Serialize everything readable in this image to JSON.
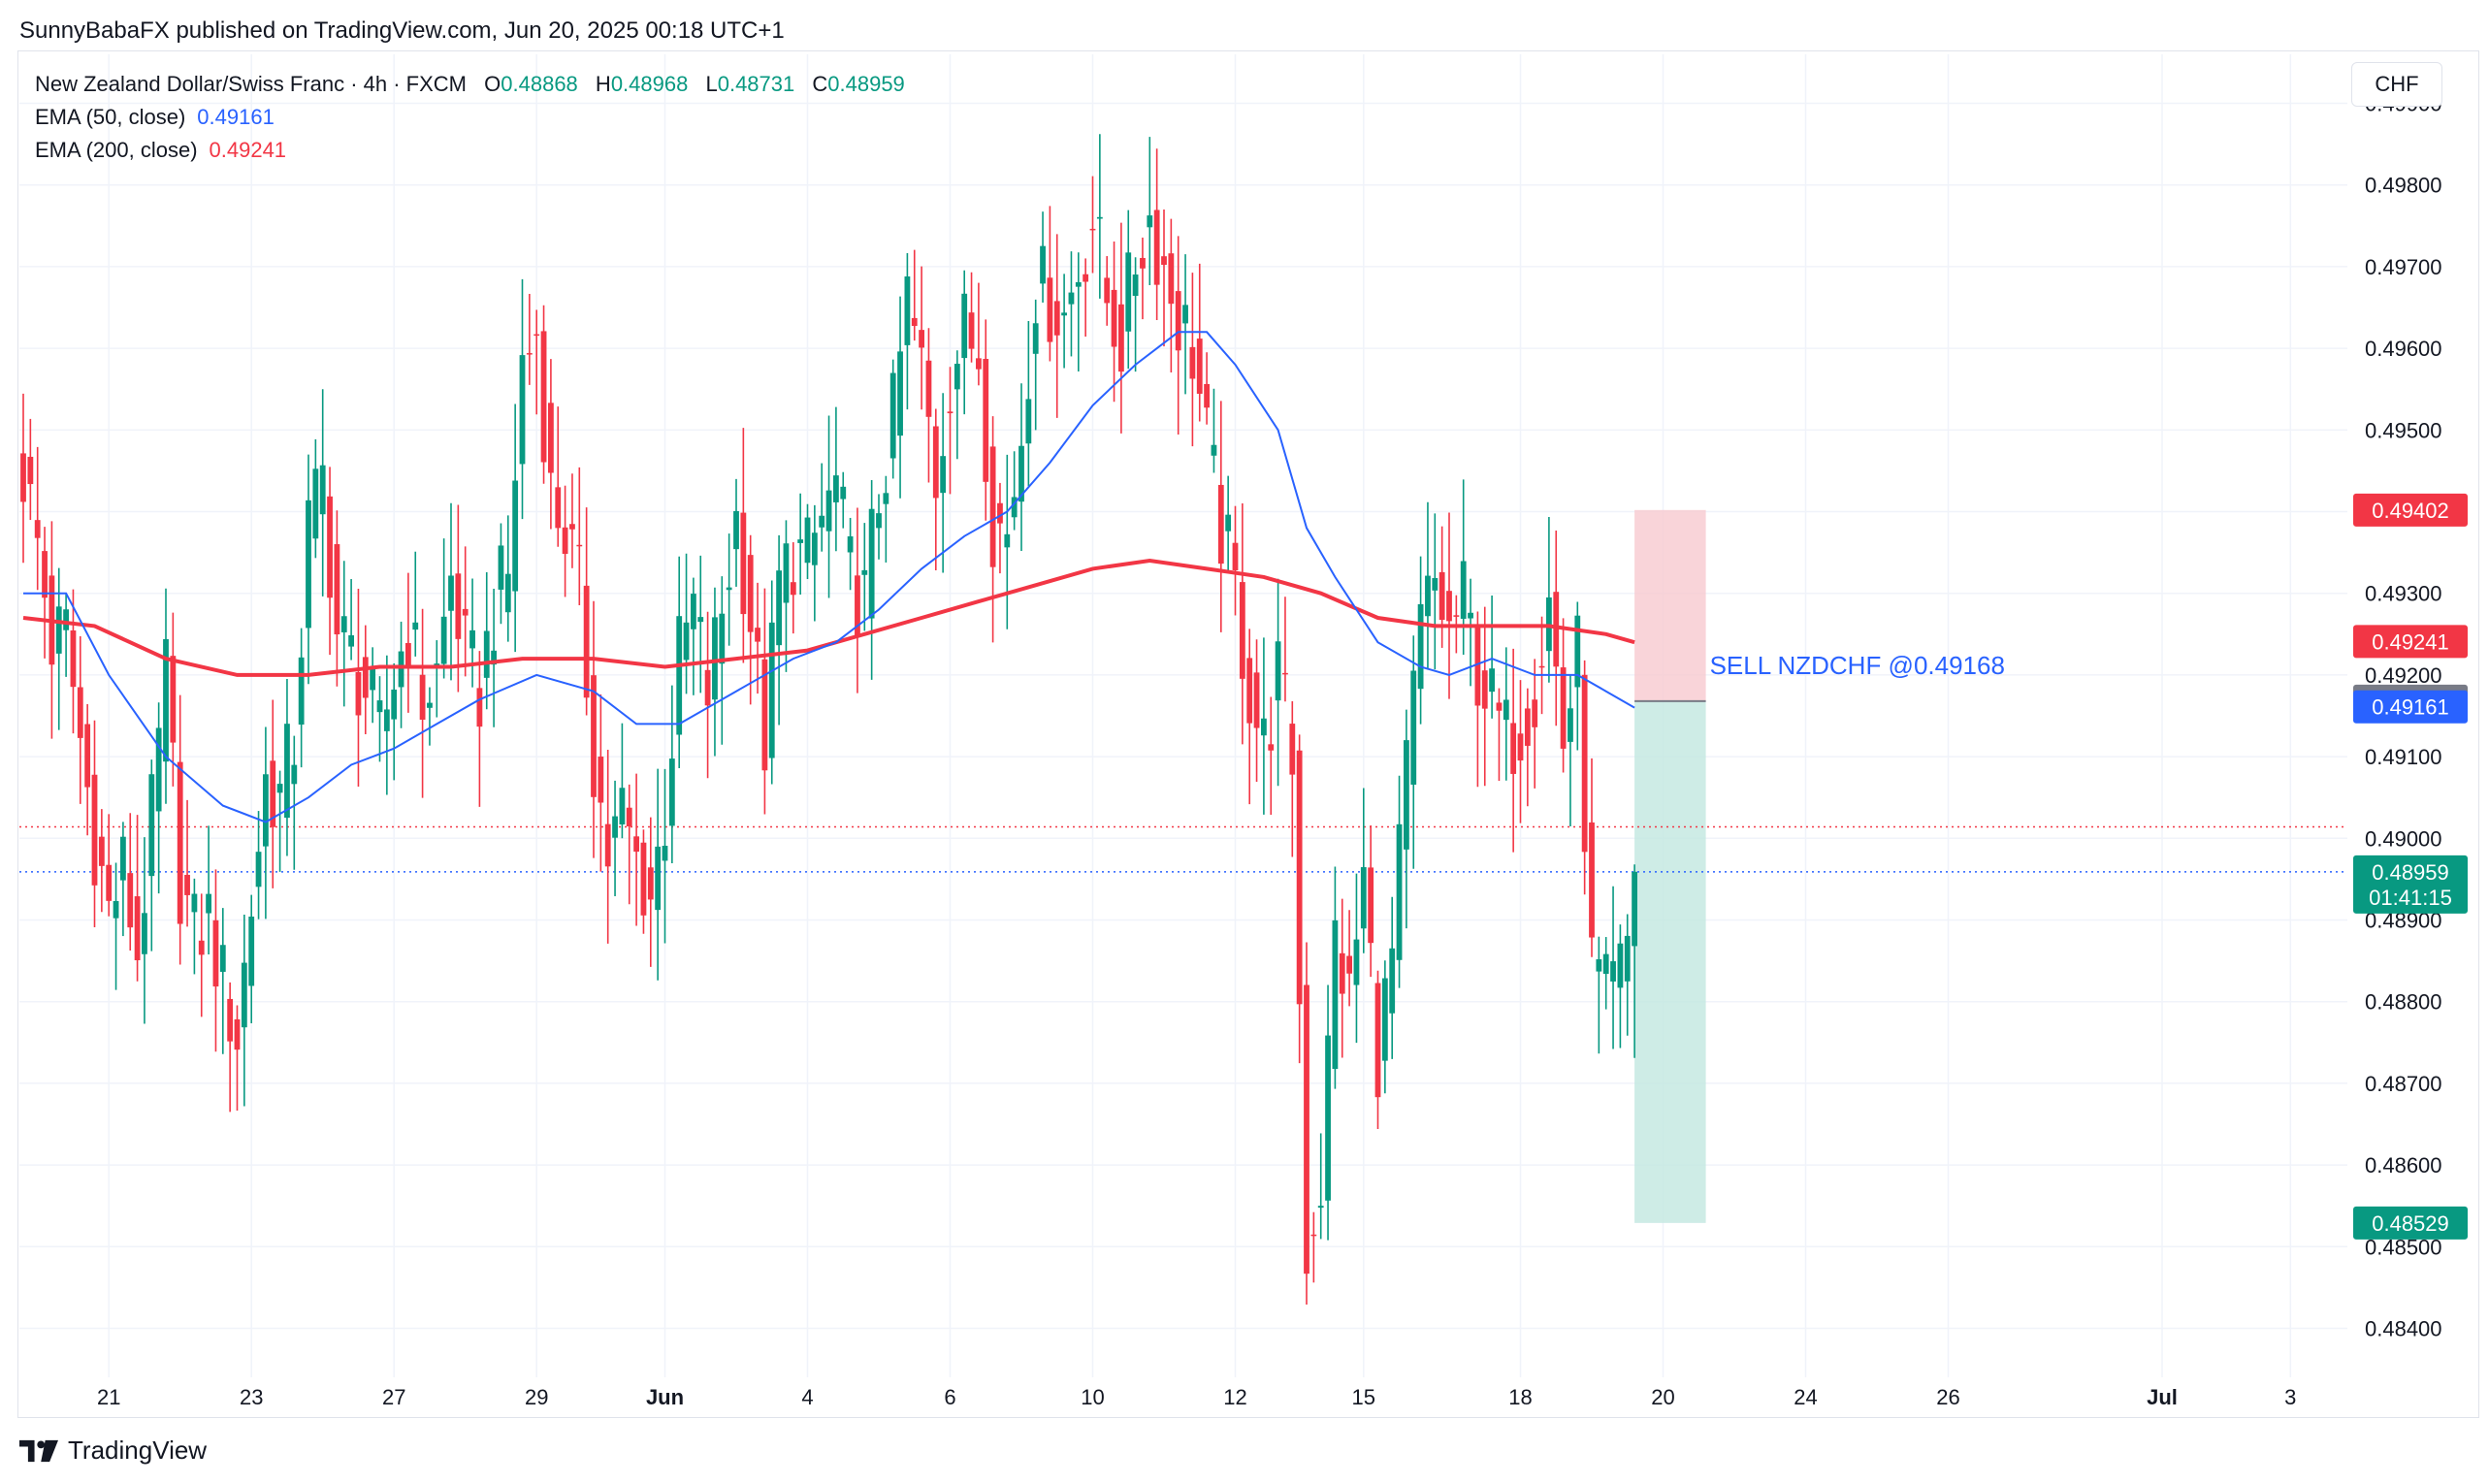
{
  "header": {
    "text": "SunnyBabaFX published on TradingView.com, Jun 20, 2025 00:18 UTC+1"
  },
  "legend": {
    "symbol": "New Zealand Dollar/Swiss Franc · 4h · FXCM",
    "ohlc": [
      {
        "k": "O",
        "v": "0.48868"
      },
      {
        "k": "H",
        "v": "0.48968"
      },
      {
        "k": "L",
        "v": "0.48731"
      },
      {
        "k": "C",
        "v": "0.48959"
      }
    ],
    "ema50": {
      "label": "EMA (50, close)",
      "value": "0.49161"
    },
    "ema200": {
      "label": "EMA (200, close)",
      "value": "0.49241"
    }
  },
  "currency": "CHF",
  "footer": {
    "brand": "TradingView"
  },
  "colors": {
    "up": "#089981",
    "down": "#f23645",
    "ema50": "#2962ff",
    "ema200": "#f23645",
    "stop_zone": "#f8c9cf",
    "target_zone": "#c2e7e0"
  },
  "chart_data": {
    "type": "candlestick",
    "title": "New Zealand Dollar/Swiss Franc · 4h · FXCM",
    "ylim": [
      0.4834,
      0.4996
    ],
    "y_ticks": [
      "0.48400",
      "0.48500",
      "0.48600",
      "0.48700",
      "0.48800",
      "0.48900",
      "0.49000",
      "0.49100",
      "0.49200",
      "0.49300",
      "0.49400",
      "0.49500",
      "0.49600",
      "0.49700",
      "0.49800",
      "0.49900"
    ],
    "x_ticks": [
      {
        "i": 12,
        "label": "21"
      },
      {
        "i": 32,
        "label": "23"
      },
      {
        "i": 52,
        "label": "27"
      },
      {
        "i": 72,
        "label": "29"
      },
      {
        "i": 90,
        "label": "Jun"
      },
      {
        "i": 110,
        "label": "4"
      },
      {
        "i": 130,
        "label": "6"
      },
      {
        "i": 150,
        "label": "10"
      },
      {
        "i": 170,
        "label": "12"
      },
      {
        "i": 188,
        "label": "15"
      },
      {
        "i": 210,
        "label": "18"
      },
      {
        "i": 230,
        "label": "20"
      },
      {
        "i": 250,
        "label": "24"
      },
      {
        "i": 270,
        "label": "26"
      },
      {
        "i": 300,
        "label": "Jul"
      },
      {
        "i": 318,
        "label": "3"
      }
    ],
    "anchors": [
      [
        0,
        0.4945
      ],
      [
        2,
        0.4936
      ],
      [
        4,
        0.4924
      ],
      [
        6,
        0.4925
      ],
      [
        8,
        0.4912
      ],
      [
        10,
        0.49
      ],
      [
        12,
        0.4891
      ],
      [
        14,
        0.4896
      ],
      [
        16,
        0.4886
      ],
      [
        18,
        0.4902
      ],
      [
        20,
        0.492
      ],
      [
        22,
        0.4895
      ],
      [
        24,
        0.4888
      ],
      [
        26,
        0.489
      ],
      [
        28,
        0.4882
      ],
      [
        30,
        0.4876
      ],
      [
        32,
        0.4892
      ],
      [
        34,
        0.4907
      ],
      [
        36,
        0.4905
      ],
      [
        38,
        0.4912
      ],
      [
        40,
        0.4938
      ],
      [
        42,
        0.4944
      ],
      [
        44,
        0.4925
      ],
      [
        46,
        0.4922
      ],
      [
        48,
        0.4918
      ],
      [
        50,
        0.4912
      ],
      [
        52,
        0.492
      ],
      [
        54,
        0.4926
      ],
      [
        56,
        0.4917
      ],
      [
        58,
        0.492
      ],
      [
        60,
        0.4932
      ],
      [
        62,
        0.4922
      ],
      [
        64,
        0.4918
      ],
      [
        66,
        0.4928
      ],
      [
        68,
        0.4932
      ],
      [
        70,
        0.4958
      ],
      [
        72,
        0.4962
      ],
      [
        74,
        0.4942
      ],
      [
        76,
        0.4938
      ],
      [
        78,
        0.493
      ],
      [
        80,
        0.491
      ],
      [
        82,
        0.4898
      ],
      [
        84,
        0.4903
      ],
      [
        86,
        0.4897
      ],
      [
        88,
        0.4893
      ],
      [
        90,
        0.4903
      ],
      [
        92,
        0.4922
      ],
      [
        94,
        0.4928
      ],
      [
        96,
        0.4918
      ],
      [
        98,
        0.4928
      ],
      [
        100,
        0.4939
      ],
      [
        102,
        0.4927
      ],
      [
        104,
        0.4912
      ],
      [
        106,
        0.4931
      ],
      [
        108,
        0.4935
      ],
      [
        110,
        0.4934
      ],
      [
        112,
        0.4939
      ],
      [
        114,
        0.4943
      ],
      [
        116,
        0.4932
      ],
      [
        118,
        0.4929
      ],
      [
        120,
        0.4942
      ],
      [
        122,
        0.4951
      ],
      [
        124,
        0.4966
      ],
      [
        126,
        0.4957
      ],
      [
        128,
        0.4944
      ],
      [
        130,
        0.4957
      ],
      [
        132,
        0.4962
      ],
      [
        134,
        0.496
      ],
      [
        136,
        0.4939
      ],
      [
        138,
        0.4937
      ],
      [
        140,
        0.495
      ],
      [
        142,
        0.4968
      ],
      [
        144,
        0.4966
      ],
      [
        146,
        0.4964
      ],
      [
        148,
        0.497
      ],
      [
        150,
        0.4976
      ],
      [
        152,
        0.4966
      ],
      [
        154,
        0.4961
      ],
      [
        156,
        0.4971
      ],
      [
        158,
        0.4976
      ],
      [
        160,
        0.497
      ],
      [
        162,
        0.4964
      ],
      [
        164,
        0.496
      ],
      [
        166,
        0.4948
      ],
      [
        168,
        0.4938
      ],
      [
        170,
        0.493
      ],
      [
        172,
        0.4918
      ],
      [
        174,
        0.4911
      ],
      [
        176,
        0.492
      ],
      [
        178,
        0.491
      ],
      [
        180,
        0.485
      ],
      [
        182,
        0.4858
      ],
      [
        184,
        0.4888
      ],
      [
        186,
        0.488
      ],
      [
        188,
        0.4895
      ],
      [
        190,
        0.4874
      ],
      [
        192,
        0.4885
      ],
      [
        194,
        0.4908
      ],
      [
        196,
        0.4926
      ],
      [
        198,
        0.4931
      ],
      [
        200,
        0.4925
      ],
      [
        202,
        0.4929
      ],
      [
        204,
        0.4921
      ],
      [
        206,
        0.4916
      ],
      [
        208,
        0.4912
      ],
      [
        210,
        0.4914
      ],
      [
        212,
        0.4919
      ],
      [
        214,
        0.4929
      ],
      [
        216,
        0.4912
      ],
      [
        218,
        0.4922
      ],
      [
        220,
        0.4884
      ],
      [
        222,
        0.488
      ],
      [
        224,
        0.4883
      ],
      [
        225,
        0.4887
      ],
      [
        226,
        0.4896
      ]
    ],
    "ema50": [
      [
        0,
        0.493
      ],
      [
        6,
        0.493
      ],
      [
        12,
        0.492
      ],
      [
        20,
        0.491
      ],
      [
        28,
        0.4904
      ],
      [
        34,
        0.4902
      ],
      [
        40,
        0.4905
      ],
      [
        46,
        0.4909
      ],
      [
        52,
        0.4911
      ],
      [
        58,
        0.4914
      ],
      [
        64,
        0.4917
      ],
      [
        72,
        0.492
      ],
      [
        80,
        0.4918
      ],
      [
        86,
        0.4914
      ],
      [
        92,
        0.4914
      ],
      [
        100,
        0.4918
      ],
      [
        108,
        0.4922
      ],
      [
        114,
        0.4924
      ],
      [
        120,
        0.4928
      ],
      [
        126,
        0.4933
      ],
      [
        132,
        0.4937
      ],
      [
        138,
        0.494
      ],
      [
        144,
        0.4946
      ],
      [
        150,
        0.4953
      ],
      [
        156,
        0.4958
      ],
      [
        162,
        0.4962
      ],
      [
        166,
        0.4962
      ],
      [
        170,
        0.4958
      ],
      [
        176,
        0.495
      ],
      [
        180,
        0.4938
      ],
      [
        184,
        0.4932
      ],
      [
        190,
        0.4924
      ],
      [
        196,
        0.4921
      ],
      [
        200,
        0.492
      ],
      [
        206,
        0.4922
      ],
      [
        212,
        0.492
      ],
      [
        218,
        0.492
      ],
      [
        222,
        0.4918
      ],
      [
        226,
        0.4916
      ]
    ],
    "ema200": [
      [
        0,
        0.4927
      ],
      [
        10,
        0.4926
      ],
      [
        20,
        0.4922
      ],
      [
        30,
        0.492
      ],
      [
        40,
        0.492
      ],
      [
        50,
        0.4921
      ],
      [
        60,
        0.4921
      ],
      [
        70,
        0.4922
      ],
      [
        80,
        0.4922
      ],
      [
        90,
        0.4921
      ],
      [
        100,
        0.4922
      ],
      [
        110,
        0.4923
      ],
      [
        118,
        0.4925
      ],
      [
        126,
        0.4927
      ],
      [
        134,
        0.4929
      ],
      [
        142,
        0.4931
      ],
      [
        150,
        0.4933
      ],
      [
        158,
        0.4934
      ],
      [
        166,
        0.4933
      ],
      [
        174,
        0.4932
      ],
      [
        182,
        0.493
      ],
      [
        190,
        0.4927
      ],
      [
        198,
        0.4926
      ],
      [
        206,
        0.4926
      ],
      [
        214,
        0.4926
      ],
      [
        222,
        0.4925
      ],
      [
        226,
        0.4924
      ]
    ],
    "trade": {
      "label": "SELL NZDCHF @0.49168",
      "entry": 0.49168,
      "stop": 0.49402,
      "target": 0.48529,
      "start_i": 226,
      "end_i": 236
    },
    "price_lines": [
      {
        "value": 0.48959,
        "color": "#2962ff",
        "style": "dotted"
      },
      {
        "value": 0.49014,
        "color": "#f23645",
        "style": "dotted"
      }
    ],
    "price_tags": [
      {
        "value": 0.49402,
        "text": "0.49402",
        "bg": "#f23645"
      },
      {
        "value": 0.49241,
        "text": "0.49241",
        "bg": "#f23645"
      },
      {
        "value": 0.49168,
        "text": "0.49168",
        "bg": "#787b86"
      },
      {
        "value": 0.49161,
        "text": "0.49161",
        "bg": "#2962ff"
      },
      {
        "value": 0.48959,
        "text": "0.48959",
        "bg": "#089981",
        "sub": "01:41:15"
      },
      {
        "value": 0.48529,
        "text": "0.48529",
        "bg": "#089981"
      }
    ],
    "grid": true
  }
}
